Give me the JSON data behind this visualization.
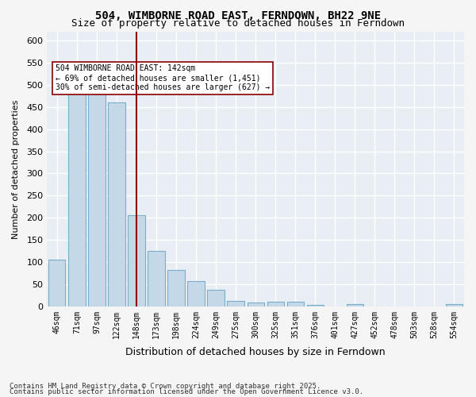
{
  "title_line1": "504, WIMBORNE ROAD EAST, FERNDOWN, BH22 9NE",
  "title_line2": "Size of property relative to detached houses in Ferndown",
  "xlabel": "Distribution of detached houses by size in Ferndown",
  "ylabel": "Number of detached properties",
  "categories": [
    "46sqm",
    "71sqm",
    "97sqm",
    "122sqm",
    "148sqm",
    "173sqm",
    "198sqm",
    "224sqm",
    "249sqm",
    "275sqm",
    "300sqm",
    "325sqm",
    "351sqm",
    "376sqm",
    "401sqm",
    "427sqm",
    "452sqm",
    "478sqm",
    "503sqm",
    "528sqm",
    "554sqm"
  ],
  "values": [
    105,
    490,
    490,
    460,
    205,
    125,
    82,
    57,
    38,
    13,
    8,
    10,
    10,
    3,
    0,
    5,
    0,
    0,
    0,
    0,
    5
  ],
  "bar_color": "#c5d8e8",
  "bar_edge_color": "#7aaec8",
  "highlight_index": 4,
  "vline_x": 4,
  "vline_color": "#8b0000",
  "annotation_text": "504 WIMBORNE ROAD EAST: 142sqm\n← 69% of detached houses are smaller (1,451)\n30% of semi-detached houses are larger (627) →",
  "annotation_box_color": "#ffffff",
  "annotation_box_edge": "#8b0000",
  "ylim": [
    0,
    620
  ],
  "yticks": [
    0,
    50,
    100,
    150,
    200,
    250,
    300,
    350,
    400,
    450,
    500,
    550,
    600
  ],
  "background_color": "#e8eef4",
  "grid_color": "#ffffff",
  "footer_line1": "Contains HM Land Registry data © Crown copyright and database right 2025.",
  "footer_line2": "Contains public sector information licensed under the Open Government Licence v3.0."
}
